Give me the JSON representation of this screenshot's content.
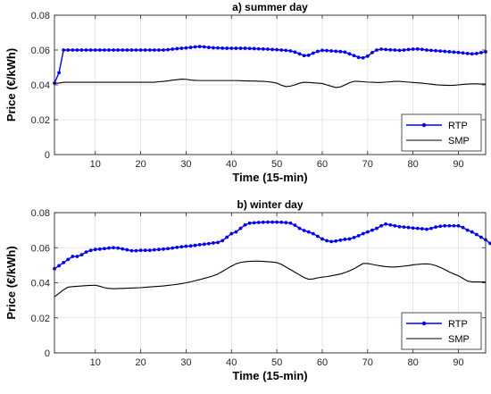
{
  "chart_data": [
    {
      "type": "line",
      "title": "a) summer day",
      "xlabel": "Time (15-min)",
      "ylabel": "Price (€/kWh)",
      "xlim": [
        1,
        96
      ],
      "ylim": [
        0,
        0.08
      ],
      "xticks": [
        10,
        20,
        30,
        40,
        50,
        60,
        70,
        80,
        90
      ],
      "xtick_labels": [
        "10",
        "20",
        "30",
        "40",
        "50",
        "60",
        "70",
        "80",
        "90"
      ],
      "yticks": [
        0,
        0.02,
        0.04,
        0.06,
        0.08
      ],
      "ytick_labels": [
        "0",
        "0.02",
        "0.04",
        "0.06",
        "0.08"
      ],
      "grid": true,
      "legend_position": "bottom-right",
      "series": [
        {
          "name": "RTP",
          "color": "#0000ff",
          "marker": "dot",
          "values": [
            0.041,
            0.047,
            0.06,
            0.06,
            0.06,
            0.06,
            0.06,
            0.06,
            0.06,
            0.06,
            0.06,
            0.06,
            0.06,
            0.06,
            0.06,
            0.06,
            0.06,
            0.06,
            0.06,
            0.06,
            0.06,
            0.06,
            0.06,
            0.06,
            0.06,
            0.0602,
            0.0605,
            0.0608,
            0.061,
            0.0612,
            0.0615,
            0.0618,
            0.062,
            0.0618,
            0.0615,
            0.0613,
            0.0612,
            0.0611,
            0.061,
            0.061,
            0.061,
            0.061,
            0.061,
            0.0609,
            0.0608,
            0.0607,
            0.0606,
            0.0605,
            0.0603,
            0.0602,
            0.06,
            0.0598,
            0.0595,
            0.0588,
            0.0578,
            0.0568,
            0.057,
            0.0582,
            0.0592,
            0.0598,
            0.0597,
            0.0595,
            0.0593,
            0.0591,
            0.0588,
            0.0578,
            0.0568,
            0.0558,
            0.0555,
            0.0565,
            0.0585,
            0.06,
            0.0605,
            0.0603,
            0.0601,
            0.06,
            0.0598,
            0.06,
            0.0603,
            0.0605,
            0.0606,
            0.0604,
            0.06,
            0.0598,
            0.0596,
            0.0594,
            0.0592,
            0.059,
            0.0588,
            0.0586,
            0.0583,
            0.058,
            0.0578,
            0.058,
            0.0585,
            0.059
          ]
        },
        {
          "name": "SMP",
          "color": "#000000",
          "marker": "none",
          "values": [
            0.041,
            0.041,
            0.0415,
            0.0415,
            0.0415,
            0.0415,
            0.0415,
            0.0415,
            0.0415,
            0.0415,
            0.0415,
            0.0415,
            0.0415,
            0.0415,
            0.0415,
            0.0415,
            0.0415,
            0.0415,
            0.0415,
            0.0415,
            0.0415,
            0.0415,
            0.0415,
            0.0418,
            0.042,
            0.0423,
            0.0427,
            0.043,
            0.0433,
            0.0432,
            0.0428,
            0.0426,
            0.0425,
            0.0425,
            0.0425,
            0.0425,
            0.0425,
            0.0425,
            0.0425,
            0.0425,
            0.0425,
            0.0424,
            0.0423,
            0.0422,
            0.0422,
            0.0421,
            0.042,
            0.0418,
            0.0415,
            0.041,
            0.0398,
            0.039,
            0.0393,
            0.04,
            0.041,
            0.0415,
            0.0414,
            0.0412,
            0.041,
            0.0408,
            0.04,
            0.0392,
            0.0385,
            0.0388,
            0.04,
            0.0412,
            0.042,
            0.042,
            0.0418,
            0.0416,
            0.0415,
            0.0414,
            0.0414,
            0.0416,
            0.0418,
            0.042,
            0.042,
            0.0418,
            0.0416,
            0.0414,
            0.0412,
            0.041,
            0.0407,
            0.0404,
            0.0401,
            0.0399,
            0.0398,
            0.0397,
            0.0398,
            0.04,
            0.0403,
            0.0405,
            0.0406,
            0.0406,
            0.0405,
            0.0405
          ]
        }
      ]
    },
    {
      "type": "line",
      "title": "b) winter day",
      "xlabel": "Time (15-min)",
      "ylabel": "Price (€/kWh)",
      "xlim": [
        1,
        96
      ],
      "ylim": [
        0,
        0.08
      ],
      "xticks": [
        10,
        20,
        30,
        40,
        50,
        60,
        70,
        80,
        90
      ],
      "xtick_labels": [
        "10",
        "20",
        "30",
        "40",
        "50",
        "60",
        "70",
        "80",
        "90"
      ],
      "yticks": [
        0,
        0.02,
        0.04,
        0.06,
        0.08
      ],
      "ytick_labels": [
        "0",
        "0.02",
        "0.04",
        "0.06",
        "0.08"
      ],
      "grid": true,
      "legend_position": "bottom-right",
      "series": [
        {
          "name": "RTP",
          "color": "#0000ff",
          "marker": "dot",
          "values": [
            0.048,
            0.0497,
            0.0515,
            0.0533,
            0.055,
            0.055,
            0.056,
            0.0575,
            0.0585,
            0.059,
            0.0592,
            0.0595,
            0.0598,
            0.06,
            0.0598,
            0.0593,
            0.0588,
            0.0583,
            0.0583,
            0.0585,
            0.0585,
            0.0585,
            0.0588,
            0.059,
            0.0592,
            0.0595,
            0.0598,
            0.0602,
            0.0605,
            0.0608,
            0.061,
            0.0613,
            0.0617,
            0.062,
            0.0623,
            0.0627,
            0.063,
            0.064,
            0.066,
            0.068,
            0.069,
            0.071,
            0.073,
            0.074,
            0.0742,
            0.0744,
            0.0745,
            0.0746,
            0.0746,
            0.0746,
            0.0745,
            0.0743,
            0.074,
            0.0728,
            0.071,
            0.0698,
            0.069,
            0.068,
            0.0665,
            0.065,
            0.064,
            0.0635,
            0.0638,
            0.0643,
            0.0648,
            0.065,
            0.0658,
            0.0668,
            0.068,
            0.069,
            0.07,
            0.071,
            0.0725,
            0.0735,
            0.073,
            0.0725,
            0.072,
            0.0718,
            0.0715,
            0.0712,
            0.071,
            0.0708,
            0.0705,
            0.071,
            0.0718,
            0.0722,
            0.0725,
            0.0725,
            0.0725,
            0.0725,
            0.0715,
            0.07,
            0.069,
            0.0675,
            0.066,
            0.0645,
            0.0625,
            0.06
          ]
        },
        {
          "name": "SMP",
          "color": "#000000",
          "marker": "none",
          "values": [
            0.032,
            0.034,
            0.036,
            0.0375,
            0.0378,
            0.038,
            0.0382,
            0.0384,
            0.0385,
            0.0386,
            0.038,
            0.0372,
            0.0368,
            0.0366,
            0.0367,
            0.0368,
            0.0369,
            0.037,
            0.0371,
            0.0372,
            0.0374,
            0.0376,
            0.0378,
            0.038,
            0.0382,
            0.0385,
            0.0388,
            0.0391,
            0.0395,
            0.04,
            0.0405,
            0.0412,
            0.0418,
            0.0425,
            0.0432,
            0.044,
            0.045,
            0.0465,
            0.048,
            0.0495,
            0.0508,
            0.0516,
            0.052,
            0.0522,
            0.0523,
            0.0523,
            0.0522,
            0.052,
            0.0518,
            0.0515,
            0.0505,
            0.049,
            0.0475,
            0.046,
            0.0445,
            0.043,
            0.042,
            0.0422,
            0.0428,
            0.0432,
            0.0435,
            0.044,
            0.0445,
            0.045,
            0.0458,
            0.0468,
            0.048,
            0.0495,
            0.051,
            0.051,
            0.0505,
            0.05,
            0.0496,
            0.0492,
            0.049,
            0.049,
            0.0492,
            0.0495,
            0.0498,
            0.0502,
            0.0505,
            0.0507,
            0.0508,
            0.0505,
            0.0498,
            0.0488,
            0.0475,
            0.0462,
            0.045,
            0.044,
            0.0425,
            0.041,
            0.0405,
            0.0405,
            0.0405,
            0.0405
          ]
        }
      ]
    }
  ]
}
